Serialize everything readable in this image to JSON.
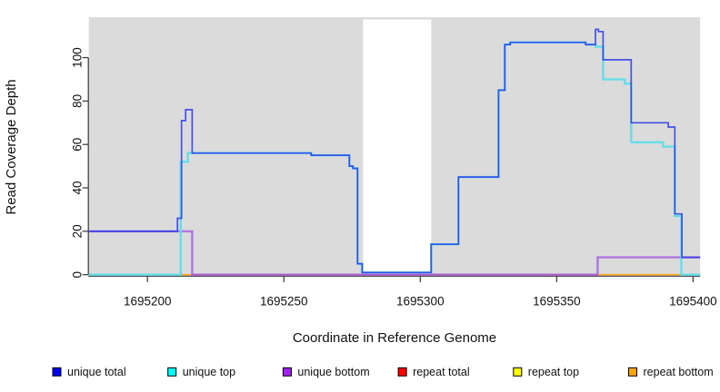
{
  "chart_data": {
    "type": "line",
    "title": "",
    "xlabel": "Coordinate in Reference Genome",
    "ylabel": "Read Coverage Depth",
    "xlim": [
      1695178.5,
      1695402.6
    ],
    "ylim": [
      -0.33,
      118.6
    ],
    "x_ticks": [
      1695200,
      1695250,
      1695300,
      1695350,
      1695400
    ],
    "y_ticks": [
      0,
      20,
      40,
      60,
      80,
      100
    ],
    "grid": "off",
    "legend_position": "bottom",
    "plot_bg_color": "#DBDBDB",
    "outer_bg_color": "#FFFFFF",
    "uncovered_region": {
      "from": 1695279,
      "to": 1695304,
      "color": "#FFFFFF"
    },
    "series": [
      {
        "name": "unique bottom",
        "color": "#A55CE0",
        "width": 2.4,
        "opacity": 0.8,
        "points": [
          [
            1695178.5,
            20
          ],
          [
            1695216.4,
            0
          ],
          [
            1695365,
            8
          ]
        ]
      },
      {
        "name": "unique top",
        "color": "#5FDDE8",
        "width": 2.4,
        "opacity": 0.95,
        "points": [
          [
            1695178.5,
            0
          ],
          [
            1695212.2,
            52
          ],
          [
            1695214.8,
            56
          ],
          [
            1695260,
            55
          ],
          [
            1695274,
            50
          ],
          [
            1695275.3,
            49
          ],
          [
            1695277,
            5
          ],
          [
            1695278.7,
            1
          ],
          [
            1695304,
            14
          ],
          [
            1695314,
            45
          ],
          [
            1695328.7,
            85
          ],
          [
            1695331,
            106
          ],
          [
            1695333,
            107
          ],
          [
            1695360.6,
            106
          ],
          [
            1695364.2,
            105
          ],
          [
            1695367,
            90
          ],
          [
            1695375,
            88
          ],
          [
            1695377.3,
            61
          ],
          [
            1695389,
            59
          ],
          [
            1695393.3,
            27
          ],
          [
            1695395.7,
            0
          ]
        ]
      },
      {
        "name": "unique total",
        "color": "#2B3BE8",
        "width": 1.7,
        "opacity": 0.86,
        "points": [
          [
            1695178.5,
            20
          ],
          [
            1695211,
            26
          ],
          [
            1695212.5,
            71
          ],
          [
            1695214,
            76
          ],
          [
            1695216.4,
            56
          ],
          [
            1695260,
            55
          ],
          [
            1695274,
            50
          ],
          [
            1695275.3,
            49
          ],
          [
            1695277,
            5
          ],
          [
            1695278.7,
            1
          ],
          [
            1695304,
            14
          ],
          [
            1695314,
            45
          ],
          [
            1695328.7,
            85
          ],
          [
            1695331,
            106
          ],
          [
            1695333,
            107
          ],
          [
            1695360.6,
            106
          ],
          [
            1695364.2,
            113
          ],
          [
            1695365.3,
            112
          ],
          [
            1695367,
            99
          ],
          [
            1695377.3,
            70
          ],
          [
            1695390.9,
            68
          ],
          [
            1695393.3,
            28
          ],
          [
            1695395.9,
            8
          ]
        ]
      }
    ],
    "zero_value_series": [
      {
        "name": "repeat total",
        "value": 0
      },
      {
        "name": "repeat top",
        "value": 0
      },
      {
        "name": "repeat bottom",
        "value": 0
      }
    ],
    "baseline_blend_segments": [
      {
        "from": 1695178.5,
        "to": 1695211,
        "color": "#8BD49C"
      },
      {
        "from": 1695211,
        "to": 1695216.3,
        "color": "#FFA520"
      },
      {
        "from": 1695216.3,
        "to": 1695365,
        "color": "#DC5878"
      },
      {
        "from": 1695365,
        "to": 1695395.7,
        "color": "#FFA520"
      },
      {
        "from": 1695395.7,
        "to": 1695402.6,
        "color": "#8BD49C"
      }
    ],
    "legend": [
      {
        "label": "unique total",
        "color": "#0000FF"
      },
      {
        "label": "unique top",
        "color": "#00FFFF"
      },
      {
        "label": "unique bottom",
        "color": "#A020F0"
      },
      {
        "label": "repeat total",
        "color": "#FF0000"
      },
      {
        "label": "repeat top",
        "color": "#FFFF00"
      },
      {
        "label": "repeat bottom",
        "color": "#FFA500"
      }
    ]
  }
}
